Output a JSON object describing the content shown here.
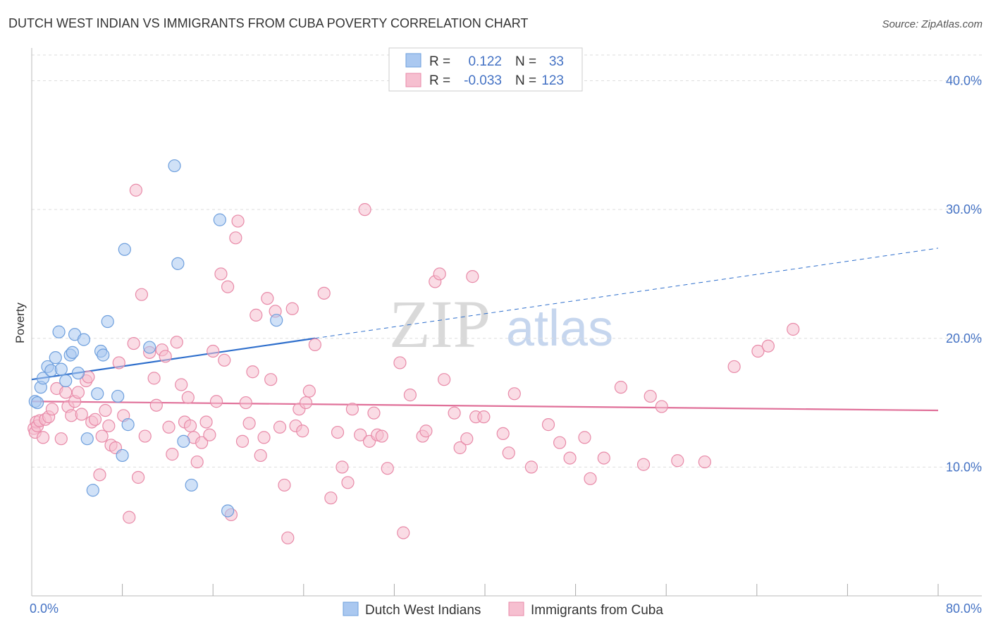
{
  "title": "DUTCH WEST INDIAN VS IMMIGRANTS FROM CUBA POVERTY CORRELATION CHART",
  "source": "Source: ZipAtlas.com",
  "watermark": {
    "zip": "ZIP",
    "atlas": "atlas"
  },
  "legend": {
    "r_label": "R =",
    "n_label": "N =",
    "rows": [
      {
        "r": "0.122",
        "n": "33"
      },
      {
        "r": "-0.033",
        "n": "123"
      }
    ]
  },
  "colors": {
    "blue_fill": "#aac8f0",
    "blue_stroke": "#6e9fdd",
    "blue_line": "#2f6fcc",
    "pink_fill": "#f6bfd0",
    "pink_stroke": "#e88aa8",
    "pink_line": "#e07099",
    "tick_text": "#4472c4",
    "grid": "#dddddd"
  },
  "chart_data": {
    "type": "scatter",
    "title": "DUTCH WEST INDIAN VS IMMIGRANTS FROM CUBA POVERTY CORRELATION CHART",
    "xlabel": "",
    "ylabel": "Poverty",
    "xlim": [
      0,
      80
    ],
    "ylim": [
      0,
      42
    ],
    "x_tick_labels": [
      "0.0%",
      "80.0%"
    ],
    "y_ticks": [
      10,
      20,
      30,
      40
    ],
    "y_tick_labels": [
      "10.0%",
      "20.0%",
      "30.0%",
      "40.0%"
    ],
    "grid": true,
    "legend_position": "top-center",
    "series": [
      {
        "name": "Dutch West Indians",
        "color": "#aac8f0",
        "r": 0.122,
        "n": 33,
        "trend": {
          "x": [
            0,
            25
          ],
          "y": [
            16.8,
            20.0
          ]
        },
        "trend_extension": {
          "x": [
            25,
            80
          ],
          "y": [
            20.0,
            27.0
          ]
        },
        "points": [
          [
            0.3,
            15.1
          ],
          [
            0.5,
            15.0
          ],
          [
            0.8,
            16.2
          ],
          [
            1.0,
            16.9
          ],
          [
            1.4,
            17.8
          ],
          [
            1.7,
            17.5
          ],
          [
            2.1,
            18.5
          ],
          [
            2.4,
            20.5
          ],
          [
            2.6,
            17.6
          ],
          [
            3.0,
            16.7
          ],
          [
            3.4,
            18.7
          ],
          [
            3.6,
            18.9
          ],
          [
            3.8,
            20.3
          ],
          [
            4.1,
            17.3
          ],
          [
            4.6,
            19.9
          ],
          [
            4.9,
            12.2
          ],
          [
            5.4,
            8.2
          ],
          [
            5.8,
            15.7
          ],
          [
            6.1,
            19.0
          ],
          [
            6.3,
            18.7
          ],
          [
            6.7,
            21.3
          ],
          [
            7.6,
            15.5
          ],
          [
            8.0,
            10.9
          ],
          [
            8.2,
            26.9
          ],
          [
            8.5,
            13.3
          ],
          [
            10.4,
            19.3
          ],
          [
            12.6,
            33.4
          ],
          [
            12.9,
            25.8
          ],
          [
            13.4,
            12.0
          ],
          [
            14.1,
            8.6
          ],
          [
            16.6,
            29.2
          ],
          [
            17.3,
            6.6
          ],
          [
            21.6,
            21.4
          ]
        ]
      },
      {
        "name": "Immigrants from Cuba",
        "color": "#f6bfd0",
        "r": -0.033,
        "n": 123,
        "trend": {
          "x": [
            0,
            80
          ],
          "y": [
            15.1,
            14.4
          ]
        },
        "points": [
          [
            0.2,
            13.0
          ],
          [
            0.3,
            12.7
          ],
          [
            0.4,
            13.5
          ],
          [
            0.5,
            13.2
          ],
          [
            0.7,
            13.6
          ],
          [
            1.0,
            12.3
          ],
          [
            1.2,
            13.7
          ],
          [
            1.5,
            13.9
          ],
          [
            1.8,
            14.5
          ],
          [
            2.2,
            16.1
          ],
          [
            2.6,
            12.2
          ],
          [
            3.0,
            15.8
          ],
          [
            3.2,
            14.7
          ],
          [
            3.5,
            14.0
          ],
          [
            3.8,
            15.1
          ],
          [
            4.1,
            15.8
          ],
          [
            4.4,
            14.1
          ],
          [
            4.8,
            16.7
          ],
          [
            5.0,
            17.0
          ],
          [
            5.3,
            13.5
          ],
          [
            5.6,
            13.7
          ],
          [
            6.0,
            9.4
          ],
          [
            6.2,
            12.4
          ],
          [
            6.5,
            14.4
          ],
          [
            6.8,
            13.2
          ],
          [
            7.0,
            11.7
          ],
          [
            7.4,
            11.5
          ],
          [
            7.7,
            18.1
          ],
          [
            8.1,
            14.0
          ],
          [
            8.6,
            6.1
          ],
          [
            9.0,
            19.6
          ],
          [
            9.2,
            31.5
          ],
          [
            9.4,
            9.2
          ],
          [
            9.7,
            23.4
          ],
          [
            10.0,
            12.4
          ],
          [
            10.4,
            18.9
          ],
          [
            10.8,
            16.9
          ],
          [
            11.0,
            14.8
          ],
          [
            11.5,
            19.1
          ],
          [
            11.8,
            18.6
          ],
          [
            12.1,
            13.1
          ],
          [
            12.4,
            11.0
          ],
          [
            12.8,
            19.7
          ],
          [
            13.2,
            16.4
          ],
          [
            13.5,
            13.5
          ],
          [
            13.8,
            15.4
          ],
          [
            14.0,
            13.2
          ],
          [
            14.3,
            12.3
          ],
          [
            14.6,
            10.4
          ],
          [
            15.0,
            11.9
          ],
          [
            15.4,
            13.5
          ],
          [
            15.7,
            12.5
          ],
          [
            16.0,
            19.0
          ],
          [
            16.3,
            15.1
          ],
          [
            16.7,
            25.0
          ],
          [
            17.0,
            18.3
          ],
          [
            17.3,
            24.0
          ],
          [
            17.6,
            6.3
          ],
          [
            18.0,
            27.8
          ],
          [
            18.2,
            29.1
          ],
          [
            18.6,
            12.0
          ],
          [
            18.9,
            15.0
          ],
          [
            19.2,
            13.4
          ],
          [
            19.5,
            17.4
          ],
          [
            19.8,
            21.8
          ],
          [
            20.2,
            10.9
          ],
          [
            20.5,
            12.3
          ],
          [
            20.8,
            23.1
          ],
          [
            21.1,
            16.8
          ],
          [
            21.5,
            22.1
          ],
          [
            21.9,
            13.1
          ],
          [
            22.3,
            8.6
          ],
          [
            22.6,
            4.5
          ],
          [
            23.0,
            22.3
          ],
          [
            23.3,
            13.2
          ],
          [
            23.6,
            14.5
          ],
          [
            23.9,
            12.8
          ],
          [
            24.2,
            15.0
          ],
          [
            24.5,
            15.9
          ],
          [
            25.0,
            19.5
          ],
          [
            25.8,
            23.5
          ],
          [
            26.4,
            7.6
          ],
          [
            27.0,
            12.7
          ],
          [
            27.4,
            10.0
          ],
          [
            27.9,
            8.8
          ],
          [
            28.3,
            14.5
          ],
          [
            29.0,
            12.5
          ],
          [
            29.4,
            30.0
          ],
          [
            29.8,
            12.0
          ],
          [
            30.2,
            14.2
          ],
          [
            30.5,
            12.5
          ],
          [
            30.9,
            12.4
          ],
          [
            31.4,
            9.9
          ],
          [
            32.5,
            18.1
          ],
          [
            32.8,
            4.9
          ],
          [
            33.4,
            15.6
          ],
          [
            34.5,
            12.4
          ],
          [
            34.8,
            12.8
          ],
          [
            35.6,
            24.4
          ],
          [
            36.0,
            25.0
          ],
          [
            36.4,
            16.8
          ],
          [
            37.3,
            14.2
          ],
          [
            37.8,
            11.5
          ],
          [
            38.4,
            12.2
          ],
          [
            38.9,
            24.8
          ],
          [
            39.2,
            13.9
          ],
          [
            39.9,
            13.9
          ],
          [
            41.6,
            12.6
          ],
          [
            42.1,
            11.1
          ],
          [
            42.6,
            15.7
          ],
          [
            44.1,
            10.0
          ],
          [
            45.6,
            13.3
          ],
          [
            46.6,
            11.9
          ],
          [
            47.5,
            10.7
          ],
          [
            48.8,
            12.3
          ],
          [
            49.3,
            9.1
          ],
          [
            50.5,
            10.7
          ],
          [
            52.0,
            16.2
          ],
          [
            54.0,
            10.2
          ],
          [
            54.6,
            15.5
          ],
          [
            55.6,
            14.7
          ],
          [
            57.0,
            10.5
          ],
          [
            59.4,
            10.4
          ],
          [
            62.0,
            17.8
          ],
          [
            64.1,
            19.0
          ],
          [
            65.0,
            19.4
          ],
          [
            67.2,
            20.7
          ]
        ]
      }
    ]
  }
}
